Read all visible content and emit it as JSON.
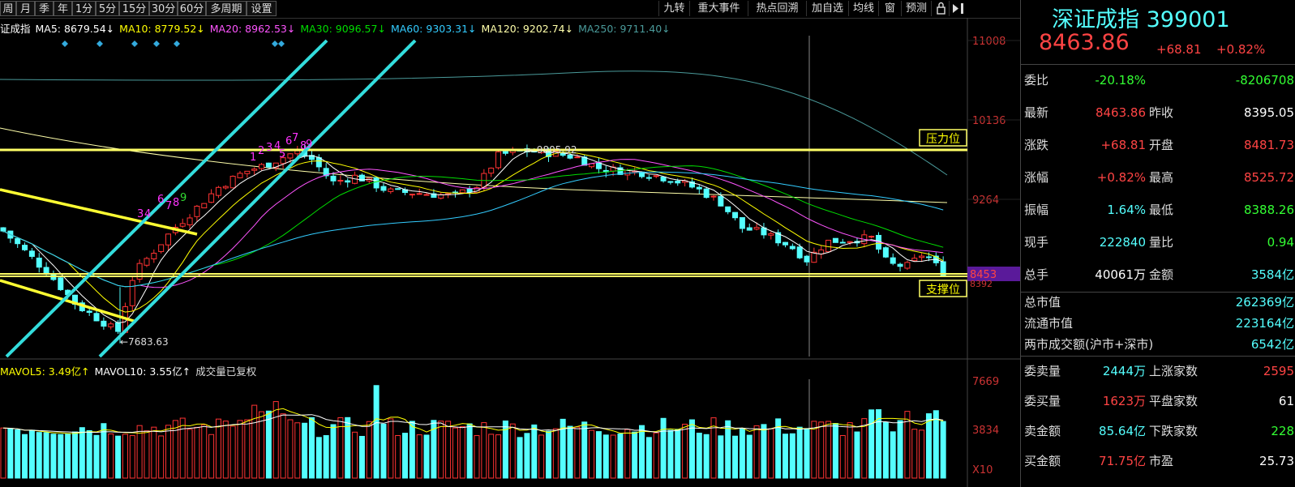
{
  "toolbar": {
    "periods": [
      "周",
      "月",
      "季",
      "年",
      "1分",
      "5分",
      "15分",
      "30分",
      "60分",
      "多周期",
      "设置"
    ],
    "right_buttons": [
      "九转",
      "重大事件",
      "热点回溯",
      "加自选",
      "均线",
      "窗",
      "预测"
    ]
  },
  "ma_legend": [
    {
      "label": "证成指",
      "color": "#ffffff"
    },
    {
      "label": "MA5: 8679.54↓",
      "color": "#ffffff"
    },
    {
      "label": "MA10: 8779.52↓",
      "color": "#ffff00"
    },
    {
      "label": "MA20: 8962.53↓",
      "color": "#ff55ff"
    },
    {
      "label": "MA30: 9096.57↓",
      "color": "#00dd00"
    },
    {
      "label": "MA60: 9303.31↓",
      "color": "#33ccff"
    },
    {
      "label": "MA120: 9202.74↓",
      "color": "#ffffaa"
    },
    {
      "label": "MA250: 9711.40↓",
      "color": "#4a9a9a"
    }
  ],
  "vol_legend": [
    {
      "label": "MAVOL5: 3.49亿↑",
      "color": "#ffff00"
    },
    {
      "label": "MAVOL10: 3.55亿↑",
      "color": "#ffffff"
    },
    {
      "label": "成交量已复权",
      "color": "#dddddd"
    }
  ],
  "annotations": {
    "resistance": "压力位",
    "support": "支撑位",
    "high_label": "9805.92",
    "low_label": "7683.63",
    "current_price_tag": "8453",
    "current_price_tag_sub": "8392",
    "seq_numbers": [
      "1",
      "2",
      "3",
      "4",
      "5",
      "6",
      "7",
      "8",
      "9"
    ],
    "seq_numbers2": [
      "3",
      "4",
      "6",
      "7",
      "8",
      "9"
    ]
  },
  "colors": {
    "up": "#ff3333",
    "down": "#54ffff",
    "grid": "#333333",
    "support_line": "#ffff66",
    "trend_line": "#ffff33",
    "channel_line": "#33dddd"
  },
  "chart_data": {
    "type": "candlestick",
    "price_axis": {
      "ticks": [
        "11008",
        "10136",
        "9264"
      ],
      "ylim": [
        7560,
        11100
      ]
    },
    "volume_axis": {
      "ticks": [
        "7669",
        "3834"
      ],
      "unit_label": "X10"
    },
    "resistance_level": 9810,
    "support_level": 8453,
    "series_summary": {
      "high": 9805.92,
      "low": 7683.63,
      "last": 8463.86
    }
  },
  "quote": {
    "title": "深证成指 399001",
    "price": "8463.86",
    "change": "+68.81",
    "change_pct": "+0.82%",
    "rows": [
      {
        "l1": "委比",
        "v1": "-20.18%",
        "c1": "#33ff33",
        "l2": "",
        "v2": "-8206708",
        "c2": "#33ff33"
      },
      {
        "l1": "最新",
        "v1": "8463.86",
        "c1": "#ff4444",
        "l2": "昨收",
        "v2": "8395.05",
        "c2": "#ffffff"
      },
      {
        "l1": "涨跌",
        "v1": "+68.81",
        "c1": "#ff4444",
        "l2": "开盘",
        "v2": "8481.73",
        "c2": "#ff4444"
      },
      {
        "l1": "涨幅",
        "v1": "+0.82%",
        "c1": "#ff4444",
        "l2": "最高",
        "v2": "8525.72",
        "c2": "#ff4444"
      },
      {
        "l1": "振幅",
        "v1": "1.64%",
        "c1": "#54ffff",
        "l2": "最低",
        "v2": "8388.26",
        "c2": "#33ff33"
      },
      {
        "l1": "现手",
        "v1": "222840",
        "c1": "#54ffff",
        "l2": "量比",
        "v2": "0.94",
        "c2": "#33ff33"
      },
      {
        "l1": "总手",
        "v1": "40061万",
        "c1": "#ffffff",
        "l2": "金额",
        "v2": "3584亿",
        "c2": "#54ffff"
      }
    ],
    "rows2": [
      {
        "l": "总市值",
        "v": "262369亿"
      },
      {
        "l": "流通市值",
        "v": "223164亿"
      },
      {
        "l": "两市成交额(沪市+深市)",
        "v": "6542亿"
      }
    ],
    "rows3": [
      {
        "l1": "委卖量",
        "v1": "2444万",
        "c1": "#54ffff",
        "l2": "上涨家数",
        "v2": "2595",
        "c2": "#ff4444"
      },
      {
        "l1": "委买量",
        "v1": "1623万",
        "c1": "#ff4444",
        "l2": "平盘家数",
        "v2": "61",
        "c2": "#ffffff"
      },
      {
        "l1": "卖金额",
        "v1": "85.64亿",
        "c1": "#54ffff",
        "l2": "下跌家数",
        "v2": "228",
        "c2": "#33ff33"
      },
      {
        "l1": "买金额",
        "v1": "71.75亿",
        "c1": "#ff4444",
        "l2": "市盈",
        "v2": "25.73",
        "c2": "#ffffff"
      }
    ]
  }
}
